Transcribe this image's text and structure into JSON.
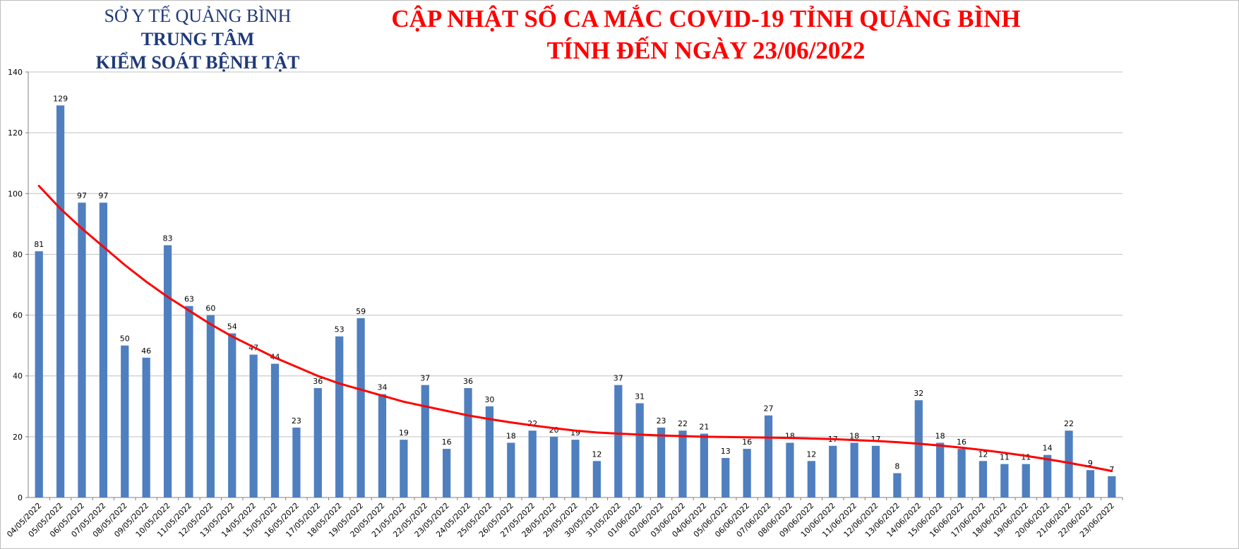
{
  "header": {
    "org_line1": "SỞ Y TẾ QUẢNG BÌNH",
    "org_line2": "TRUNG TÂM",
    "org_line3": "KIỂM SOÁT BỆNH TẬT",
    "title_line1": "CẬP NHẬT SỐ CA MẮC COVID-19 TỈNH QUẢNG BÌNH",
    "title_line2": "TÍNH ĐẾN NGÀY 23/06/2022"
  },
  "chart_data": {
    "type": "bar",
    "title": "CẬP NHẬT SỐ CA MẮC COVID-19 TỈNH QUẢNG BÌNH",
    "xlabel": "",
    "ylabel": "",
    "ylim": [
      0,
      140
    ],
    "yticks": [
      0,
      20,
      40,
      60,
      80,
      100,
      120,
      140
    ],
    "grid": true,
    "legend": "none",
    "colors": {
      "bar": "#4f7fbf",
      "trend": "#ff0000",
      "grid": "#c0c0c0",
      "axis": "#808080"
    },
    "categories": [
      "04/05/2022",
      "05/05/2022",
      "06/05/2022",
      "07/05/2022",
      "08/05/2022",
      "09/05/2022",
      "10/05/2022",
      "11/05/2022",
      "12/05/2022",
      "13/05/2022",
      "14/05/2022",
      "15/05/2022",
      "16/05/2022",
      "17/05/2022",
      "18/05/2022",
      "19/05/2022",
      "20/05/2022",
      "21/05/2022",
      "22/05/2022",
      "23/05/2022",
      "24/05/2022",
      "25/05/2022",
      "26/05/2022",
      "27/05/2022",
      "28/05/2022",
      "29/05/2022",
      "30/05/2022",
      "31/05/2022",
      "01/06/2022",
      "02/06/2022",
      "03/06/2022",
      "04/06/2022",
      "05/06/2022",
      "06/06/2022",
      "07/06/2022",
      "08/06/2022",
      "09/06/2022",
      "10/06/2022",
      "11/06/2022",
      "12/06/2022",
      "13/06/2022",
      "14/06/2022",
      "15/06/2022",
      "16/06/2022",
      "17/06/2022",
      "18/06/2022",
      "19/06/2022",
      "20/06/2022",
      "21/06/2022",
      "22/06/2022",
      "23/06/2022"
    ],
    "values": [
      81,
      129,
      97,
      97,
      50,
      46,
      83,
      63,
      60,
      54,
      47,
      44,
      23,
      36,
      53,
      59,
      34,
      19,
      37,
      16,
      36,
      30,
      18,
      22,
      20,
      19,
      12,
      37,
      31,
      23,
      22,
      21,
      13,
      16,
      27,
      18,
      12,
      17,
      18,
      17,
      8,
      32,
      18,
      16,
      12,
      11,
      11,
      14,
      22,
      9,
      7
    ],
    "trendline": [
      102.5,
      95,
      88.5,
      82.5,
      76.5,
      71,
      66,
      61.5,
      57,
      53,
      49.5,
      46,
      43,
      40,
      37.5,
      35.5,
      33.5,
      31.5,
      30,
      28.5,
      27,
      25.8,
      24.7,
      23.7,
      22.8,
      22,
      21.4,
      21,
      20.7,
      20.4,
      20.2,
      20,
      19.9,
      19.8,
      19.7,
      19.6,
      19.4,
      19.2,
      18.9,
      18.6,
      18.2,
      17.7,
      17.1,
      16.4,
      15.6,
      14.7,
      13.7,
      12.6,
      11.4,
      10.1,
      8.7
    ]
  }
}
